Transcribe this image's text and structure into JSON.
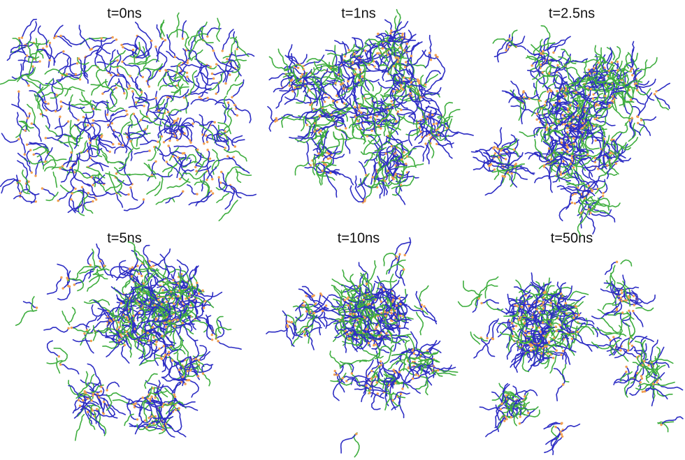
{
  "panels": [
    {
      "label": "t=0ns"
    },
    {
      "label": "t=1ns"
    },
    {
      "label": "t=2.5ns"
    },
    {
      "label": "t=5ns"
    },
    {
      "label": "t=10ns"
    },
    {
      "label": "t=50ns"
    }
  ]
}
